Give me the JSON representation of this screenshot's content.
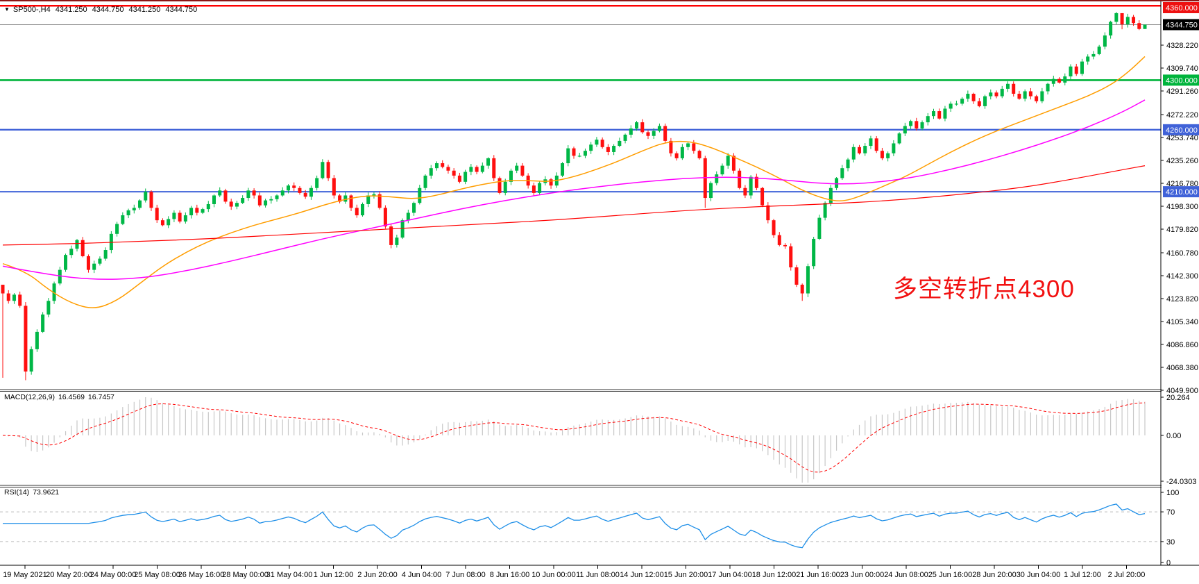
{
  "symbol": {
    "name": "SP500-,H4",
    "open": "4341.250",
    "high": "4344.750",
    "low": "4341.250",
    "close": "4344.750"
  },
  "annotation": {
    "text": "多空转折点4300",
    "color": "#f21111"
  },
  "macd_panel": {
    "label": "MACD(12,26,9)",
    "macd_value": "16.4569",
    "signal_value": "16.7457",
    "ticks": [
      {
        "label": "20.264",
        "v": 20.264
      },
      {
        "label": "0.00",
        "v": 0
      },
      {
        "label": "-24.0303",
        "v": -24.0303
      }
    ],
    "histogram_color": "#c8c8c8",
    "signal_color": "#ff0000"
  },
  "rsi_panel": {
    "label": "RSI(14)",
    "value": "73.9621",
    "ticks": [
      {
        "label": "100",
        "v": 100
      },
      {
        "label": "70",
        "v": 70
      },
      {
        "label": "30",
        "v": 30
      },
      {
        "label": "0",
        "v": 0
      }
    ],
    "levels": [
      70,
      30
    ],
    "line_color": "#1e8fe8"
  },
  "price_axis": {
    "ticks": [
      {
        "label": "4328.220",
        "price": 4328.22
      },
      {
        "label": "4309.740",
        "price": 4309.74
      },
      {
        "label": "4291.260",
        "price": 4291.26
      },
      {
        "label": "4272.220",
        "price": 4272.22
      },
      {
        "label": "4253.740",
        "price": 4253.74
      },
      {
        "label": "4235.260",
        "price": 4235.26
      },
      {
        "label": "4216.780",
        "price": 4216.78
      },
      {
        "label": "4198.300",
        "price": 4198.3
      },
      {
        "label": "4179.820",
        "price": 4179.82
      },
      {
        "label": "4160.780",
        "price": 4160.78
      },
      {
        "label": "4142.300",
        "price": 4142.3
      },
      {
        "label": "4123.820",
        "price": 4123.82
      },
      {
        "label": "4105.340",
        "price": 4105.34
      },
      {
        "label": "4086.860",
        "price": 4086.86
      },
      {
        "label": "4068.380",
        "price": 4068.38
      },
      {
        "label": "4049.900",
        "price": 4049.9
      }
    ],
    "badges": [
      {
        "label": "4360.000",
        "price": 4360,
        "bg": "#ee1111",
        "fg": "#ffffff"
      },
      {
        "label": "4344.750",
        "price": 4344.75,
        "bg": "#000000",
        "fg": "#ffffff"
      },
      {
        "label": "4300.000",
        "price": 4300,
        "bg": "#00b43c",
        "fg": "#ffffff"
      },
      {
        "label": "4260.000",
        "price": 4260,
        "bg": "#4062d8",
        "fg": "#ffffff"
      },
      {
        "label": "4210.000",
        "price": 4210,
        "bg": "#4062d8",
        "fg": "#ffffff"
      }
    ]
  },
  "time_axis": {
    "labels": [
      "19 May 2021",
      "20 May 20:00",
      "24 May 00:00",
      "25 May 08:00",
      "26 May 16:00",
      "28 May 00:00",
      "31 May 04:00",
      "1 Jun 12:00",
      "2 Jun 20:00",
      "4 Jun 04:00",
      "7 Jun 08:00",
      "8 Jun 16:00",
      "10 Jun 00:00",
      "11 Jun 08:00",
      "14 Jun 12:00",
      "15 Jun 20:00",
      "17 Jun 04:00",
      "18 Jun 12:00",
      "21 Jun 16:00",
      "23 Jun 00:00",
      "24 Jun 08:00",
      "25 Jun 16:00",
      "28 Jun 20:00",
      "30 Jun 04:00",
      "1 Jul 12:00",
      "2 Jul 20:00"
    ]
  },
  "chart_data": [
    {
      "type": "candlestick",
      "title": "SP500- H4",
      "up_color": "#00b746",
      "down_color": "#ff0f0f",
      "ylim": [
        4049.9,
        4360
      ],
      "open_first": 4135,
      "closes": [
        4128,
        4122,
        4127,
        4118,
        4065,
        4083,
        4097,
        4111,
        4122,
        4136,
        4147,
        4159,
        4164,
        4171,
        4158,
        4147,
        4152,
        4156,
        4163,
        4176,
        4184,
        4191,
        4195,
        4197,
        4203,
        4210,
        4197,
        4187,
        4183,
        4188,
        4193,
        4186,
        4191,
        4197,
        4193,
        4196,
        4200,
        4207,
        4211,
        4202,
        4198,
        4201,
        4205,
        4211,
        4207,
        4199,
        4203,
        4204,
        4207,
        4211,
        4215,
        4213,
        4209,
        4206,
        4213,
        4221,
        4234,
        4221,
        4207,
        4202,
        4207,
        4197,
        4191,
        4200,
        4207,
        4208,
        4197,
        4182,
        4167,
        4173,
        4187,
        4193,
        4201,
        4213,
        4223,
        4229,
        4233,
        4230,
        4227,
        4223,
        4218,
        4226,
        4230,
        4226,
        4231,
        4237,
        4221,
        4209,
        4218,
        4227,
        4231,
        4223,
        4215,
        4209,
        4217,
        4220,
        4215,
        4223,
        4233,
        4245,
        4239,
        4239,
        4243,
        4248,
        4252,
        4246,
        4242,
        4247,
        4251,
        4256,
        4261,
        4266,
        4258,
        4255,
        4259,
        4263,
        4251,
        4241,
        4237,
        4246,
        4249,
        4243,
        4237,
        4205,
        4217,
        4224,
        4231,
        4239,
        4227,
        4213,
        4207,
        4222,
        4213,
        4199,
        4187,
        4175,
        4167,
        4166,
        4149,
        4135,
        4128,
        4150,
        4172,
        4189,
        4201,
        4213,
        4221,
        4229,
        4236,
        4246,
        4241,
        4247,
        4253,
        4243,
        4237,
        4241,
        4249,
        4257,
        4263,
        4267,
        4261,
        4266,
        4271,
        4275,
        4269,
        4277,
        4281,
        4281,
        4285,
        4289,
        4283,
        4279,
        4287,
        4290,
        4287,
        4293,
        4297,
        4289,
        4285,
        4291,
        4287,
        4283,
        4291,
        4297,
        4301,
        4298,
        4303,
        4311,
        4305,
        4315,
        4319,
        4321,
        4327,
        4336,
        4347,
        4354,
        4345,
        4351,
        4346,
        4341.25,
        4344.75
      ],
      "wick_overrides": {
        "0": [
          4132,
          4060
        ],
        "4": [
          4121,
          4058
        ],
        "123": [
          4239,
          4197
        ],
        "140": [
          4136,
          4122
        ],
        "141": [
          4152,
          4125
        ],
        "195": [
          4355,
          4345
        ],
        "196": [
          4354,
          4341
        ],
        "200": [
          4344.75,
          4341.25
        ]
      },
      "hlines": [
        {
          "price": 4360,
          "color": "#ff0000",
          "w": 2.4
        },
        {
          "price": 4344.75,
          "color": "#909090",
          "w": 1
        },
        {
          "price": 4300,
          "color": "#00b43c",
          "w": 2.6
        },
        {
          "price": 4260,
          "color": "#4062d8",
          "w": 2.4
        },
        {
          "price": 4210,
          "color": "#4062d8",
          "w": 2
        }
      ],
      "moving_averages": [
        {
          "name": "ma-fast",
          "color": "#ff9d00",
          "width": 1.5,
          "points": [
            [
              0,
              4152
            ],
            [
              4,
              4146
            ],
            [
              8,
              4131
            ],
            [
              12,
              4120
            ],
            [
              16,
              4115
            ],
            [
              20,
              4122
            ],
            [
              24,
              4136
            ],
            [
              28,
              4150
            ],
            [
              32,
              4161
            ],
            [
              36,
              4170
            ],
            [
              40,
              4177
            ],
            [
              44,
              4183
            ],
            [
              48,
              4188
            ],
            [
              52,
              4193
            ],
            [
              56,
              4199
            ],
            [
              60,
              4204
            ],
            [
              64,
              4207
            ],
            [
              68,
              4206
            ],
            [
              72,
              4204
            ],
            [
              76,
              4207
            ],
            [
              80,
              4212
            ],
            [
              84,
              4216
            ],
            [
              88,
              4219
            ],
            [
              92,
              4219
            ],
            [
              96,
              4218
            ],
            [
              100,
              4222
            ],
            [
              104,
              4228
            ],
            [
              108,
              4235
            ],
            [
              112,
              4243
            ],
            [
              116,
              4250
            ],
            [
              120,
              4251
            ],
            [
              124,
              4246
            ],
            [
              128,
              4238
            ],
            [
              132,
              4230
            ],
            [
              136,
              4221
            ],
            [
              140,
              4211
            ],
            [
              144,
              4204
            ],
            [
              147,
              4202
            ],
            [
              150,
              4206
            ],
            [
              154,
              4214
            ],
            [
              158,
              4222
            ],
            [
              162,
              4232
            ],
            [
              166,
              4242
            ],
            [
              170,
              4251
            ],
            [
              174,
              4259
            ],
            [
              178,
              4266
            ],
            [
              182,
              4273
            ],
            [
              186,
              4280
            ],
            [
              190,
              4287
            ],
            [
              194,
              4296
            ],
            [
              197,
              4306
            ],
            [
              200,
              4319
            ]
          ]
        },
        {
          "name": "ma-mid",
          "color": "#ff00ff",
          "width": 1.5,
          "points": [
            [
              0,
              4150
            ],
            [
              8,
              4143
            ],
            [
              16,
              4139
            ],
            [
              24,
              4140
            ],
            [
              32,
              4146
            ],
            [
              40,
              4154
            ],
            [
              48,
              4163
            ],
            [
              56,
              4172
            ],
            [
              64,
              4180
            ],
            [
              72,
              4188
            ],
            [
              80,
              4196
            ],
            [
              88,
              4203
            ],
            [
              96,
              4209
            ],
            [
              104,
              4214
            ],
            [
              112,
              4218
            ],
            [
              120,
              4221
            ],
            [
              128,
              4222
            ],
            [
              136,
              4220
            ],
            [
              142,
              4217
            ],
            [
              148,
              4216
            ],
            [
              154,
              4218
            ],
            [
              160,
              4222
            ],
            [
              166,
              4228
            ],
            [
              172,
              4235
            ],
            [
              178,
              4243
            ],
            [
              184,
              4252
            ],
            [
              190,
              4262
            ],
            [
              196,
              4274
            ],
            [
              200,
              4284
            ]
          ]
        },
        {
          "name": "ma-slow",
          "color": "#ff0000",
          "width": 1.2,
          "points": [
            [
              0,
              4167
            ],
            [
              12,
              4168
            ],
            [
              24,
              4170
            ],
            [
              36,
              4172
            ],
            [
              48,
              4175
            ],
            [
              60,
              4178
            ],
            [
              72,
              4181
            ],
            [
              84,
              4184
            ],
            [
              96,
              4187
            ],
            [
              108,
              4191
            ],
            [
              120,
              4195
            ],
            [
              132,
              4198
            ],
            [
              144,
              4200
            ],
            [
              156,
              4203
            ],
            [
              168,
              4208
            ],
            [
              178,
              4213
            ],
            [
              186,
              4219
            ],
            [
              194,
              4226
            ],
            [
              200,
              4231
            ]
          ]
        }
      ]
    },
    {
      "type": "bar",
      "name": "MACD(12,26,9)",
      "params": {
        "fast": 12,
        "slow": 26,
        "signal": 9
      },
      "current_macd": 16.4569,
      "current_signal": 16.7457,
      "ylim": [
        -24.0303,
        20.264
      ],
      "derived_from": "closes of chart_data[0]"
    },
    {
      "type": "line",
      "name": "RSI(14)",
      "period": 14,
      "current": 73.9621,
      "ylim": [
        0,
        100
      ],
      "levels": [
        70,
        30
      ],
      "derived_from": "closes of chart_data[0]"
    }
  ]
}
